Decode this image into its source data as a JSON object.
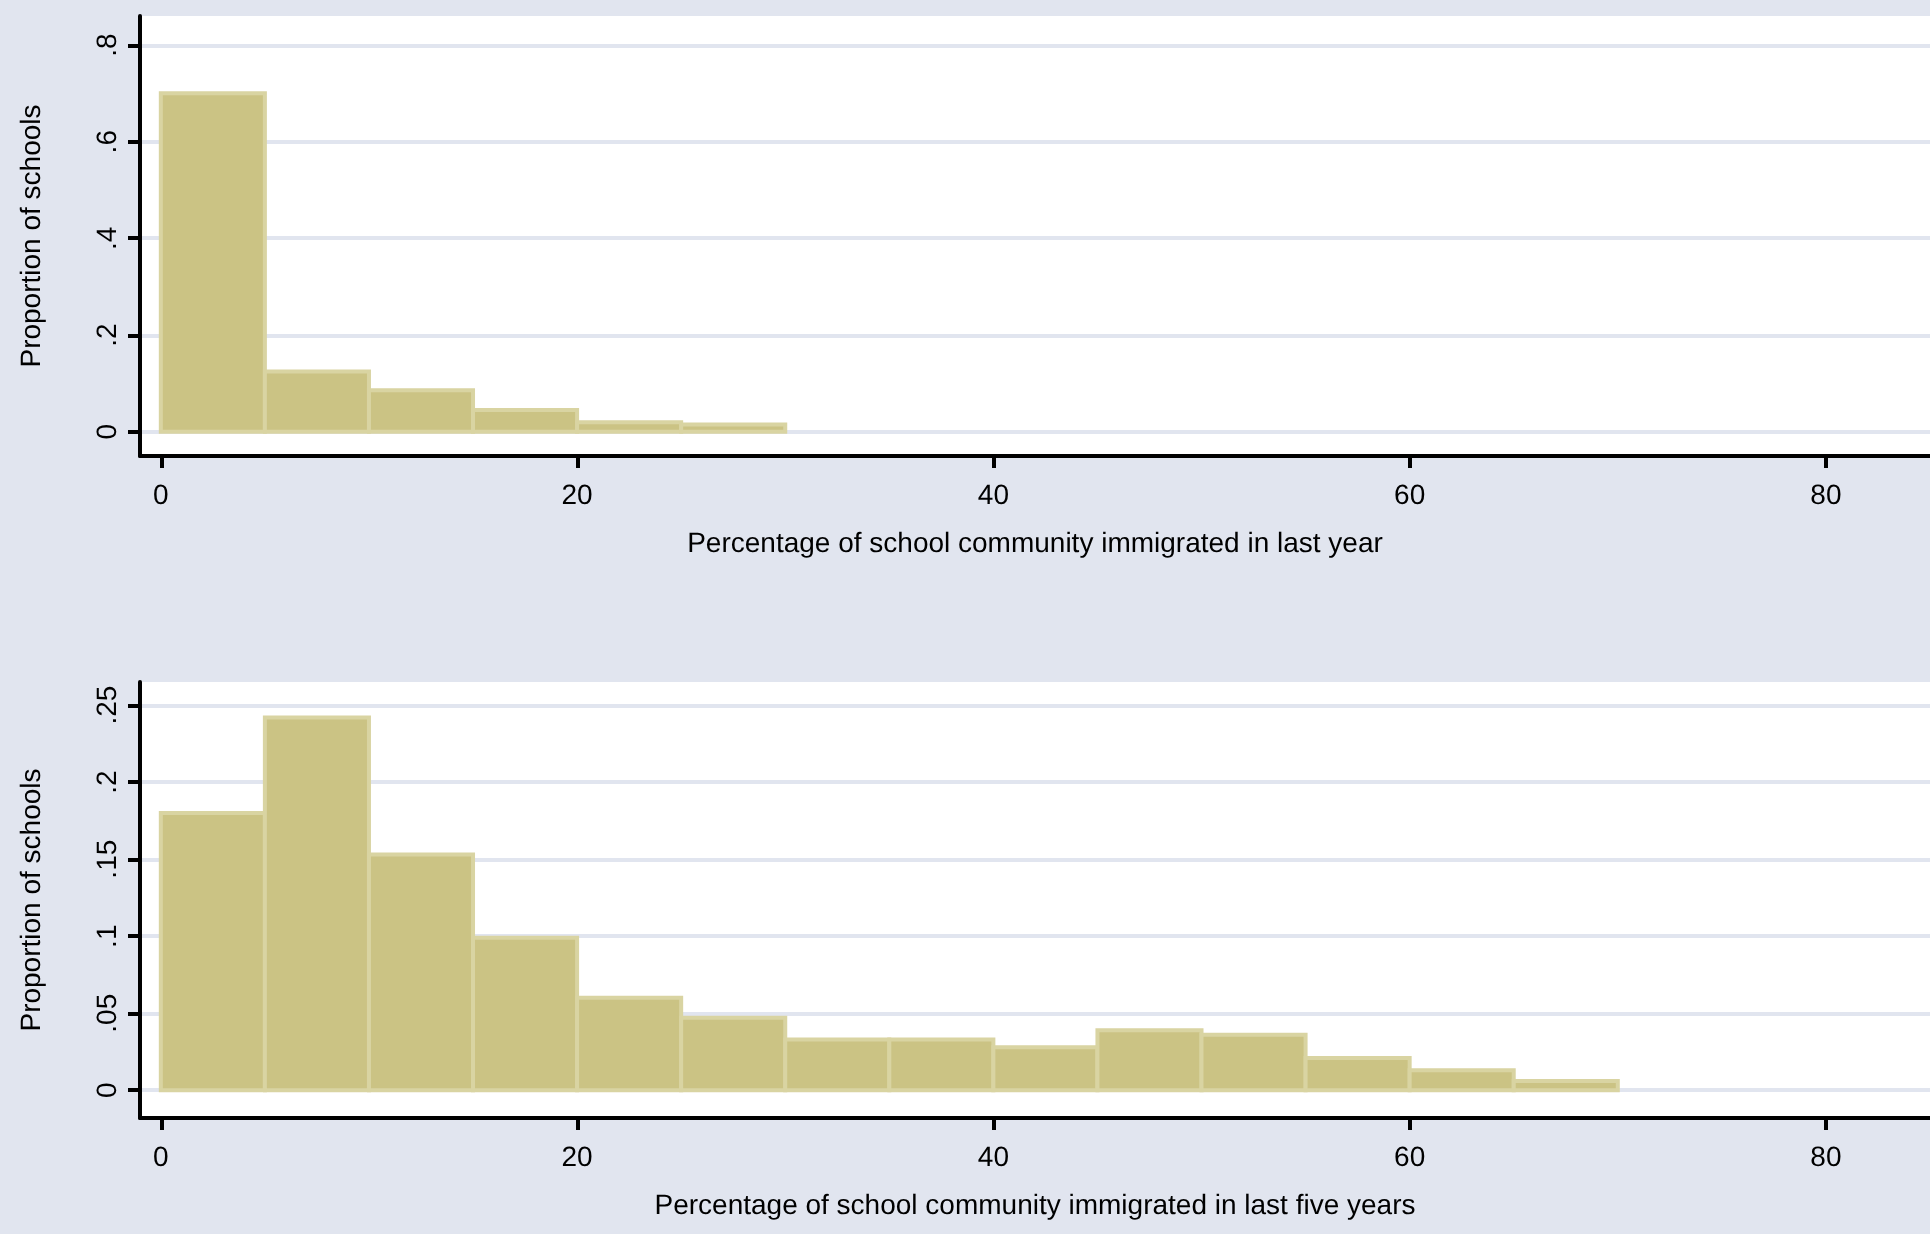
{
  "chart_data": [
    {
      "type": "histogram",
      "xlabel": "Percentage of school community immigrated in last year",
      "ylabel": "Proportion of schools",
      "bins": [
        0,
        5,
        10,
        15,
        20,
        25,
        30
      ],
      "values": [
        0.7,
        0.125,
        0.086,
        0.045,
        0.02,
        0.015
      ],
      "color": "#cbc384",
      "xlim": [
        -1,
        85
      ],
      "xticks": [
        0,
        20,
        40,
        60,
        80
      ],
      "ylim": [
        -0.05,
        0.86
      ],
      "yticks": [
        {
          "value": 0,
          "label": "0"
        },
        {
          "value": 0.2,
          "label": ".2"
        },
        {
          "value": 0.4,
          "label": ".4"
        },
        {
          "value": 0.6,
          "label": ".6"
        },
        {
          "value": 0.8,
          "label": ".8"
        }
      ],
      "grid": "y"
    },
    {
      "type": "histogram",
      "xlabel": "Percentage of school community immigrated in last five years",
      "ylabel": "Proportion of schools",
      "bins": [
        0,
        5,
        10,
        15,
        20,
        25,
        30,
        35,
        40,
        45,
        50,
        55,
        60,
        65,
        70
      ],
      "values": [
        0.18,
        0.242,
        0.153,
        0.099,
        0.06,
        0.047,
        0.033,
        0.033,
        0.028,
        0.039,
        0.036,
        0.021,
        0.013,
        0.006
      ],
      "color": "#cbc384",
      "xlim": [
        -1,
        85
      ],
      "xticks": [
        0,
        20,
        40,
        60,
        80
      ],
      "ylim": [
        -0.018,
        0.265
      ],
      "yticks": [
        {
          "value": 0,
          "label": "0"
        },
        {
          "value": 0.05,
          "label": ".05"
        },
        {
          "value": 0.1,
          "label": ".1"
        },
        {
          "value": 0.15,
          "label": ".15"
        },
        {
          "value": 0.2,
          "label": ".2"
        },
        {
          "value": 0.25,
          "label": ".25"
        }
      ],
      "grid": "y"
    }
  ]
}
